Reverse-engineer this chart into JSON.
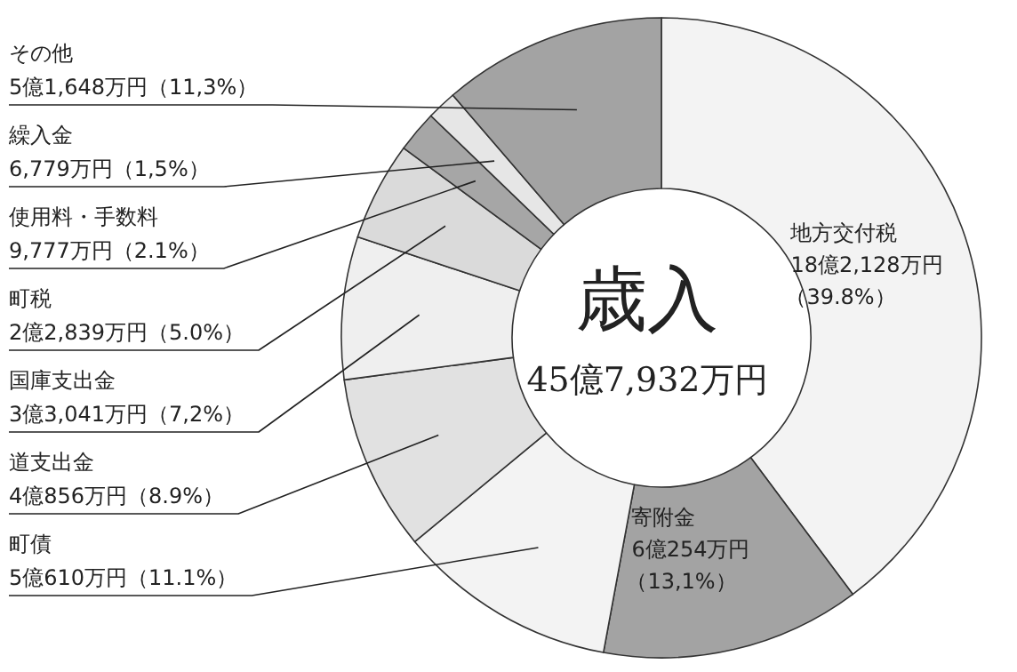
{
  "chart_data": {
    "type": "donut",
    "title": "歳入",
    "subtitle": "45億7,932万円",
    "categories": [
      "地方交付税",
      "寄附金",
      "町債",
      "道支出金",
      "国庫支出金",
      "町税",
      "使用料・手数料",
      "繰入金",
      "その他"
    ],
    "values": [
      39.8,
      13.1,
      11.1,
      8.9,
      7.2,
      5.0,
      2.1,
      1.5,
      11.3
    ],
    "value_labels": [
      "18億2,128万円（39.8%）",
      "6億254万円（13,1%）",
      "5億610万円（11.1%）",
      "4億856万円（8.9%）",
      "3億3,041万円（7,2%）",
      "2億2,839万円（5.0%）",
      "9,777万円（2.1%）",
      "6,779万円（1,5%）",
      "5億1,648万円（11,3%）"
    ],
    "colors": [
      "#f3f3f3",
      "#a3a3a3",
      "#f3f3f3",
      "#e1e1e1",
      "#efefef",
      "#dadada",
      "#a6a6a6",
      "#e6e6e6",
      "#a3a3a3"
    ]
  }
}
